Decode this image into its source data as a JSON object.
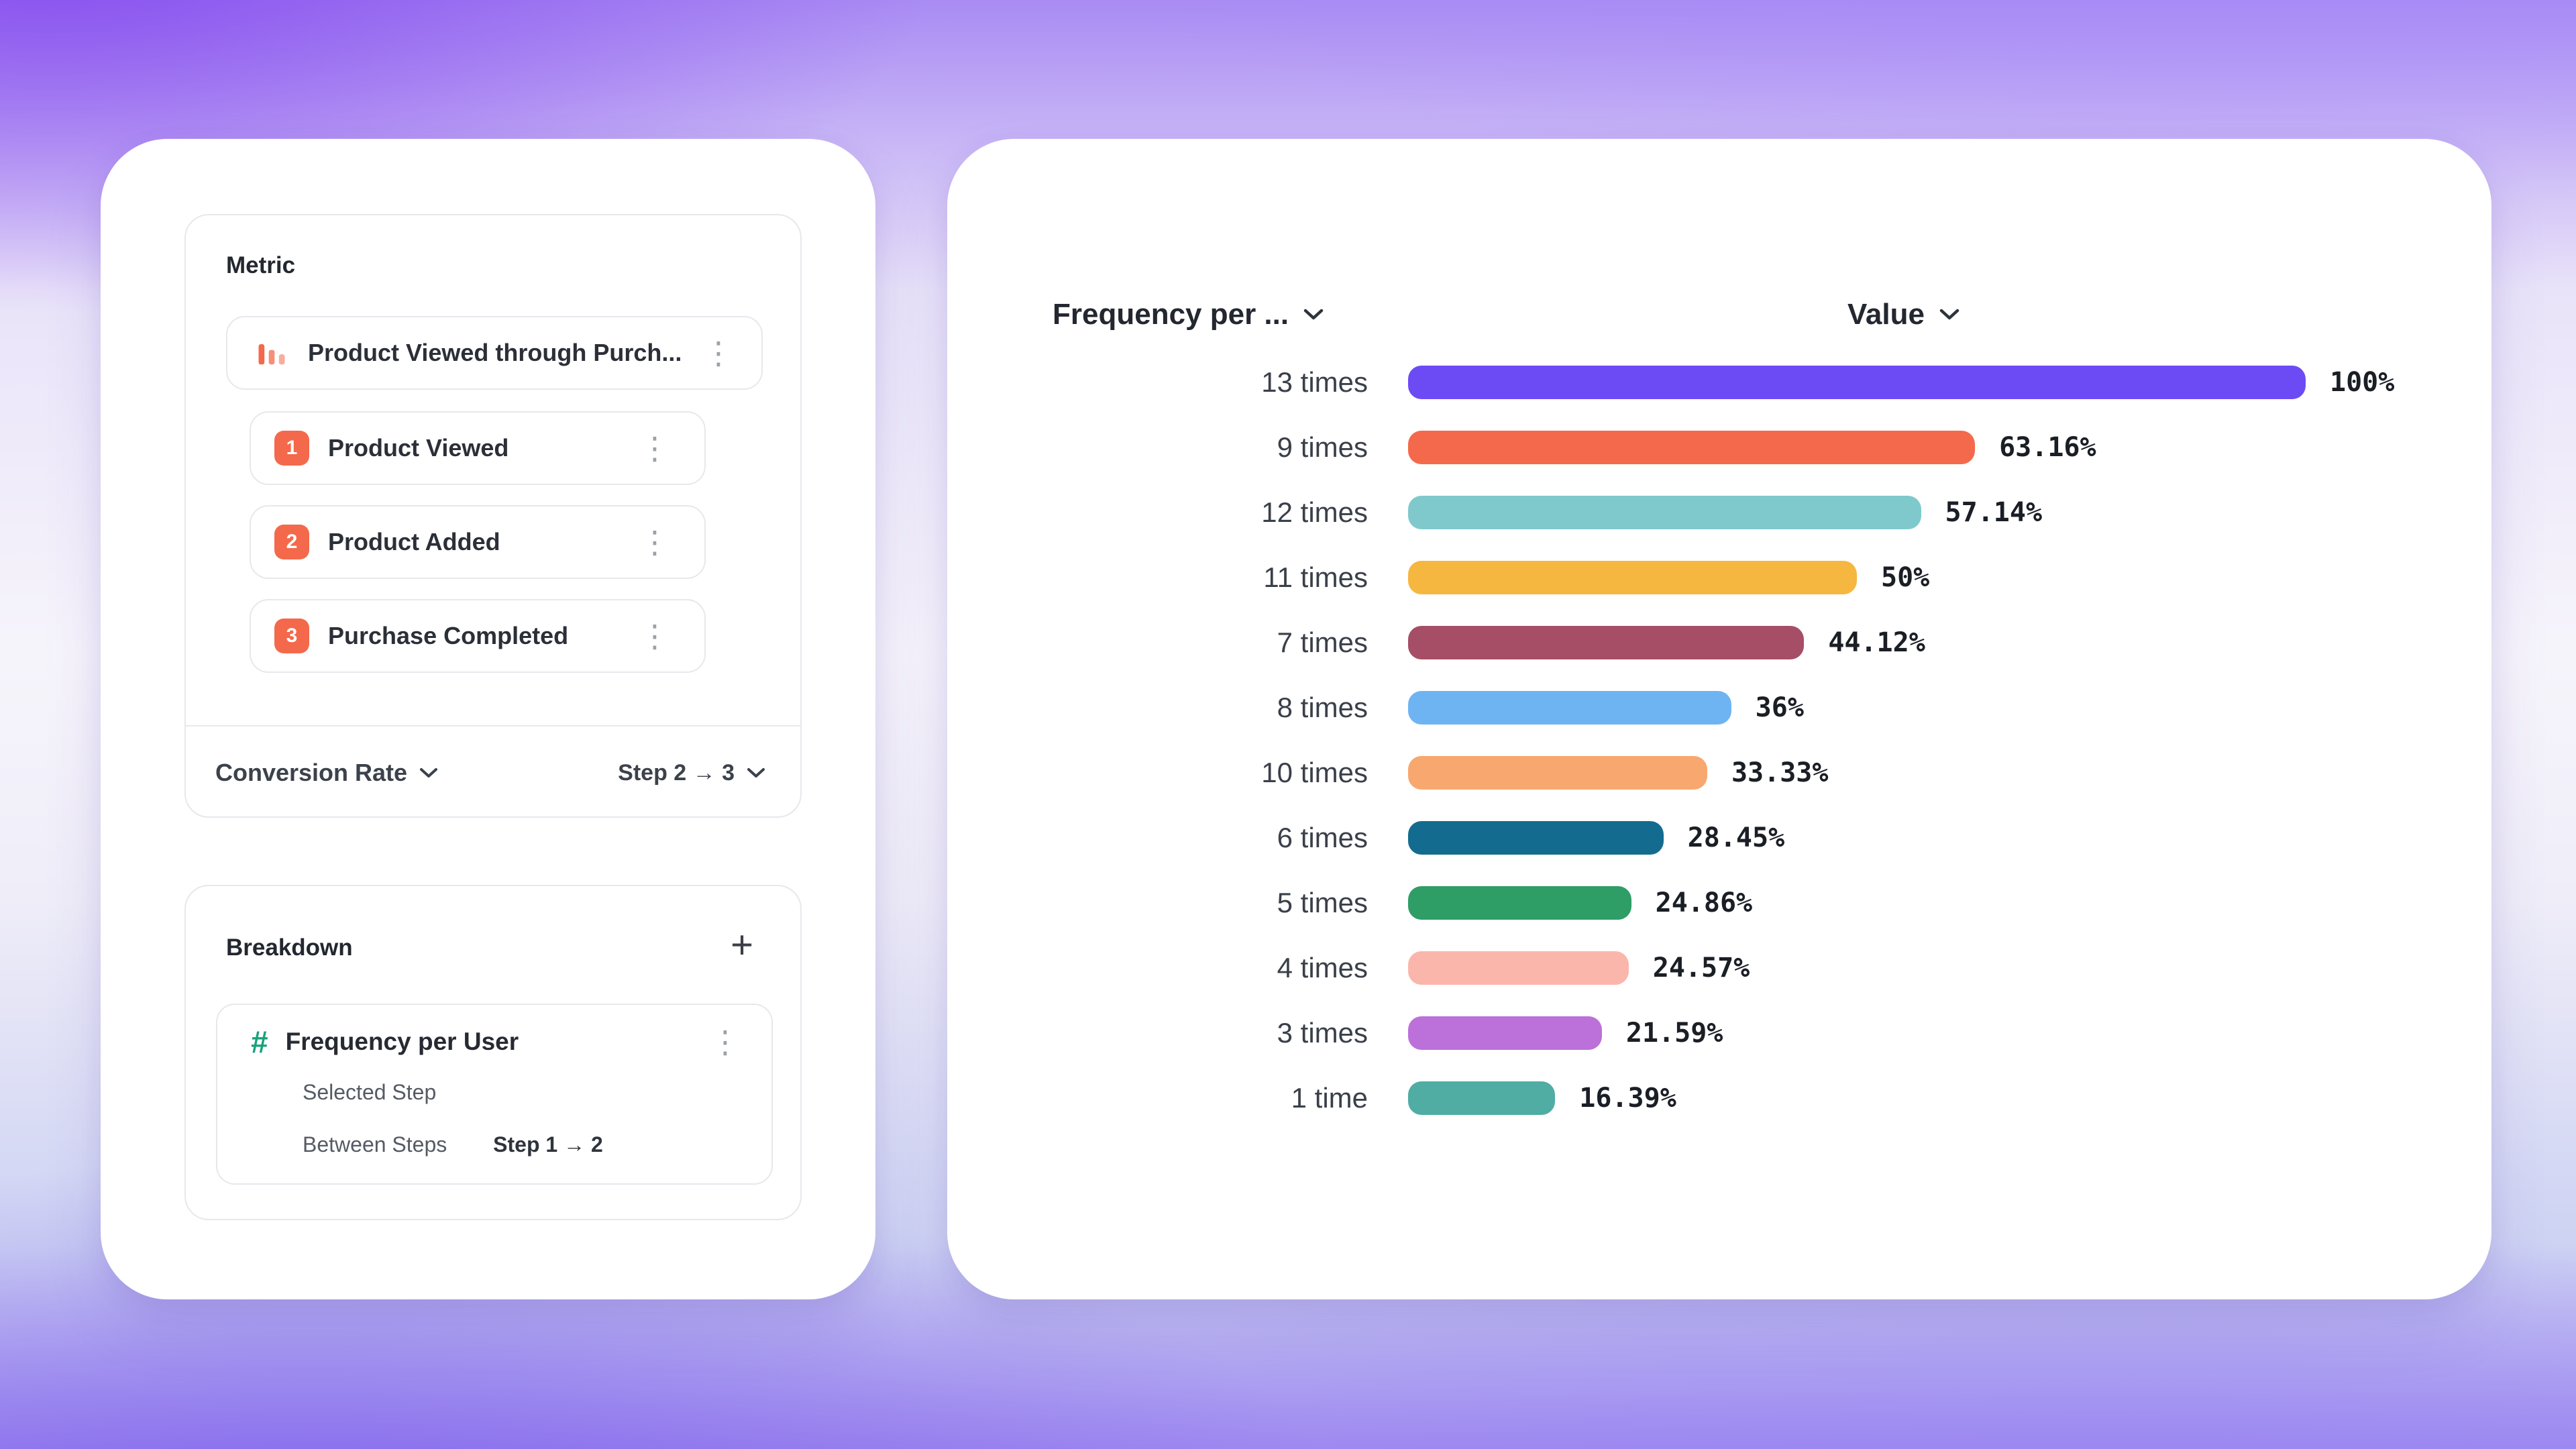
{
  "metric_panel": {
    "title": "Metric",
    "funnel": {
      "name": "Product Viewed through Purch...",
      "steps": [
        {
          "num": "1",
          "label": "Product Viewed"
        },
        {
          "num": "2",
          "label": "Product Added"
        },
        {
          "num": "3",
          "label": "Purchase Completed"
        }
      ]
    },
    "conversion": {
      "label": "Conversion Rate",
      "range": "Step 2 → 3"
    }
  },
  "breakdown_panel": {
    "title": "Breakdown",
    "add_label": "+",
    "item": {
      "hash_icon": "#",
      "name": "Frequency per User",
      "selected_step_label": "Selected Step",
      "between_steps_label": "Between Steps",
      "between_steps_value": "Step 1 → 2"
    }
  },
  "chart_data": {
    "type": "bar",
    "orientation": "horizontal",
    "header": {
      "category_dropdown": "Frequency per ...",
      "value_dropdown": "Value"
    },
    "categories": [
      "13 times",
      "9 times",
      "12 times",
      "11 times",
      "7 times",
      "8 times",
      "10 times",
      "6 times",
      "5 times",
      "4 times",
      "3 times",
      "1 time"
    ],
    "values": [
      100,
      63.16,
      57.14,
      50,
      44.12,
      36,
      33.33,
      28.45,
      24.86,
      24.57,
      21.59,
      16.39
    ],
    "value_labels": [
      "100%",
      "63.16%",
      "57.14%",
      "50%",
      "44.12%",
      "36%",
      "33.33%",
      "28.45%",
      "24.86%",
      "24.57%",
      "21.59%",
      "16.39%"
    ],
    "colors": [
      "#6C4BF4",
      "#F4694B",
      "#7FC9CD",
      "#F5B73F",
      "#A54E66",
      "#6FB4F2",
      "#F8A76F",
      "#136C90",
      "#2E9D66",
      "#FBB6AC",
      "#BB70DA",
      "#4FADA3"
    ],
    "xlim": [
      0,
      100
    ],
    "grid": false,
    "accent_orange": "#F4694B",
    "accent_green": "#19A27C"
  }
}
